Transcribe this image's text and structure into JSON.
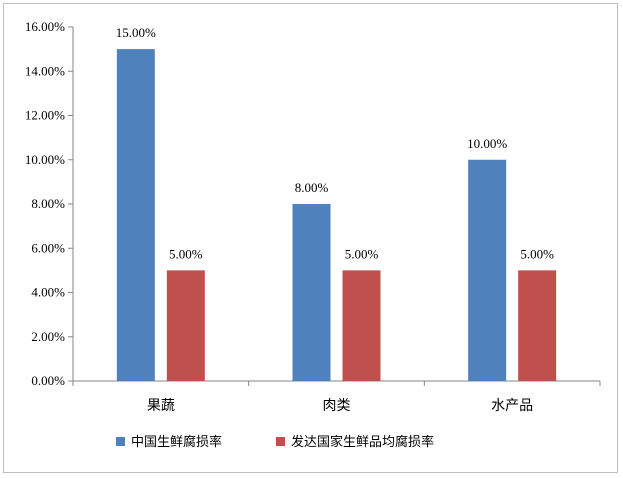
{
  "chart_data": {
    "type": "bar",
    "categories": [
      "果蔬",
      "肉类",
      "水产品"
    ],
    "series": [
      {
        "name": "中国生鲜腐损率",
        "values": [
          15.0,
          8.0,
          10.0
        ],
        "labels": [
          "15.00%",
          "8.00%",
          "10.00%"
        ],
        "color": "#4f81bd"
      },
      {
        "name": "发达国家生鲜品均腐损率",
        "values": [
          5.0,
          5.0,
          5.0
        ],
        "labels": [
          "5.00%",
          "5.00%",
          "5.00%"
        ],
        "color": "#c0504d"
      }
    ],
    "ylim": [
      0,
      16
    ],
    "yticks": [
      0,
      2,
      4,
      6,
      8,
      10,
      12,
      14,
      16
    ],
    "ytick_labels": [
      "0.00%",
      "2.00%",
      "4.00%",
      "6.00%",
      "8.00%",
      "10.00%",
      "12.00%",
      "14.00%",
      "16.00%"
    ],
    "grid": false,
    "legend_position": "bottom"
  }
}
